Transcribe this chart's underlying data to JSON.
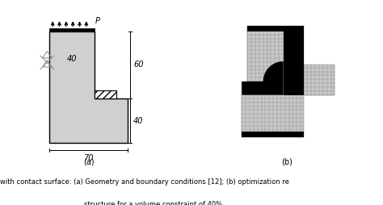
{
  "fig_width": 4.74,
  "fig_height": 2.54,
  "dpi": 100,
  "bg_color": "#ffffff",
  "caption_a": "(a)",
  "caption_b": "(b)",
  "caption_text": "with contact surface: (a) Geometry and boundary conditions [12]; (b) optimization re",
  "caption_text2": "structure for a volume constraint of 40%",
  "label_40_top": "40",
  "label_60": "60",
  "label_40_bottom": "40",
  "label_70": "70",
  "label_P": "P",
  "rect_fill": "#d0d0d0",
  "rect_edge": "#000000"
}
